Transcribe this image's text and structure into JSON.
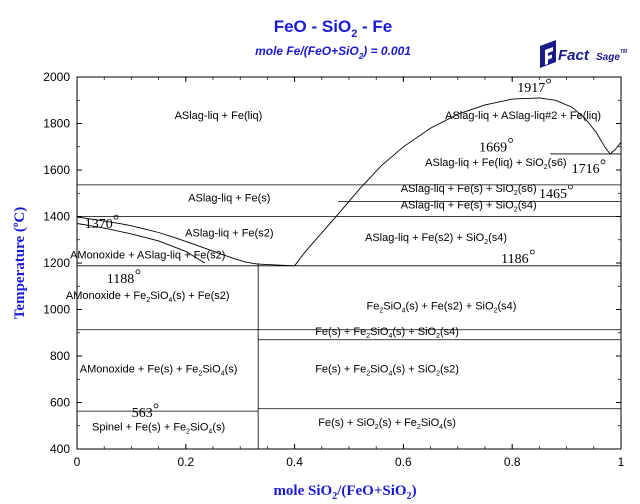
{
  "chart_data": {
    "type": "phase-diagram",
    "title": "FeO - SiO2 - Fe",
    "title_parts": [
      "FeO - SiO",
      "2",
      " - Fe"
    ],
    "subtitle_parts": [
      "mole Fe/(FeO+SiO",
      "2",
      ") = 0.001"
    ],
    "xlabel_parts": [
      "mole SiO",
      "2",
      "/(FeO+SiO",
      "2",
      ")"
    ],
    "ylabel": "Temperature (°C)",
    "ylabel_parts": [
      "Temperature (",
      "o",
      "C)"
    ],
    "xlim": [
      0,
      1
    ],
    "ylim": [
      400,
      2000
    ],
    "xticks": [
      0,
      0.2,
      0.4,
      0.6,
      0.8,
      1
    ],
    "xtick_labels": [
      "0",
      "0.2",
      "0.4",
      "0.6",
      "0.8",
      "1"
    ],
    "yticks": [
      400,
      600,
      800,
      1000,
      1200,
      1400,
      1600,
      1800,
      2000
    ],
    "ytick_labels": [
      "400",
      "600",
      "800",
      "1000",
      "1200",
      "1400",
      "1600",
      "1800",
      "2000"
    ],
    "horizontal_lines": [
      {
        "y": 1669,
        "x": [
          0.87,
          1.0
        ]
      },
      {
        "y": 1536,
        "x": [
          0,
          1.0
        ]
      },
      {
        "y": 1465,
        "x": [
          0.48,
          1.0
        ]
      },
      {
        "y": 1400,
        "x": [
          0,
          1.0
        ]
      },
      {
        "y": 1188,
        "x": [
          0,
          1.0
        ]
      },
      {
        "y": 913,
        "x": [
          0,
          1.0
        ]
      },
      {
        "y": 870,
        "x": [
          0.333,
          1.0
        ]
      },
      {
        "y": 573,
        "x": [
          0.333,
          1.0
        ]
      },
      {
        "y": 563,
        "x": [
          0,
          0.333
        ]
      }
    ],
    "vertical_lines": [
      {
        "x": 0.333,
        "y": [
          400,
          1200
        ]
      }
    ],
    "curves": [
      {
        "name": "liquidus-left",
        "x": [
          0,
          0.02,
          0.05,
          0.08,
          0.1,
          0.12,
          0.15,
          0.18,
          0.2,
          0.23,
          0.26,
          0.29,
          0.31,
          0.33,
          0.35,
          0.38,
          0.4
        ],
        "y": [
          1398,
          1391,
          1380,
          1369,
          1360,
          1349,
          1331,
          1309,
          1293,
          1268,
          1242,
          1218,
          1204,
          1196,
          1193,
          1190,
          1188
        ]
      },
      {
        "name": "wustite-liquidus",
        "x": [
          0,
          0.05,
          0.1,
          0.15,
          0.2,
          0.235
        ],
        "y": [
          1370,
          1350,
          1325,
          1295,
          1250,
          1200
        ]
      },
      {
        "name": "miscibility-gap",
        "x": [
          0.4,
          0.42,
          0.45,
          0.48,
          0.52,
          0.56,
          0.6,
          0.65,
          0.7,
          0.75,
          0.8,
          0.85,
          0.88,
          0.91,
          0.935,
          0.955,
          0.97,
          0.98
        ],
        "y": [
          1188,
          1250,
          1330,
          1410,
          1520,
          1620,
          1700,
          1780,
          1840,
          1880,
          1905,
          1910,
          1900,
          1870,
          1820,
          1760,
          1700,
          1669
        ]
      },
      {
        "name": "cristobalite-liquidus",
        "x": [
          0.98,
          0.99,
          1.0
        ],
        "y": [
          1669,
          1690,
          1720
        ]
      }
    ],
    "regions": [
      {
        "label_parts": [
          "ASlag-liq + Fe(liq)"
        ],
        "x": 0.26,
        "y": 1820
      },
      {
        "label_parts": [
          "ASlag-liq + ASlag-liq#2 + Fe(liq)"
        ],
        "x": 0.82,
        "y": 1820
      },
      {
        "label_parts": [
          "ASlag-liq + Fe(liq) + SiO",
          "2",
          "(s6)"
        ],
        "x": 0.77,
        "y": 1618
      },
      {
        "label_parts": [
          "ASlag-liq + Fe(s) + SiO",
          "2",
          "(s6)"
        ],
        "x": 0.72,
        "y": 1505
      },
      {
        "label_parts": [
          "ASlag-liq + Fe(s) + SiO",
          "2",
          "(s4)"
        ],
        "x": 0.72,
        "y": 1435
      },
      {
        "label_parts": [
          "ASlag-liq + Fe(s)"
        ],
        "x": 0.28,
        "y": 1465
      },
      {
        "label_parts": [
          "ASlag-liq + Fe(s2)"
        ],
        "x": 0.28,
        "y": 1315
      },
      {
        "label_parts": [
          "ASlag-liq + Fe(s2) + SiO",
          "2",
          "(s4)"
        ],
        "x": 0.66,
        "y": 1295
      },
      {
        "label_parts": [
          "AMonoxide + ASlag-liq + Fe(s2)"
        ],
        "x": 0.13,
        "y": 1220
      },
      {
        "label_parts": [
          "AMonoxide + Fe",
          "2",
          "SiO",
          "4",
          "(s) + Fe(s2)"
        ],
        "x": 0.13,
        "y": 1045
      },
      {
        "label_parts": [
          "Fe",
          "2",
          "SiO",
          "4",
          "(s) + Fe(s2) + SiO",
          "2",
          "(s4)"
        ],
        "x": 0.67,
        "y": 1000
      },
      {
        "label_parts": [
          "Fe(s) + Fe",
          "2",
          "SiO",
          "4",
          "(s) + SiO",
          "2",
          "(s4)"
        ],
        "x": 0.57,
        "y": 890
      },
      {
        "label_parts": [
          "AMonoxide + Fe(s) + Fe",
          "2",
          "SiO",
          "4",
          "(s)"
        ],
        "x": 0.15,
        "y": 730
      },
      {
        "label_parts": [
          "Fe(s) + Fe",
          "2",
          "SiO",
          "4",
          "(s) + SiO",
          "2",
          "(s2)"
        ],
        "x": 0.57,
        "y": 730
      },
      {
        "label_parts": [
          "Spinel + Fe(s) + Fe",
          "2",
          "SiO",
          "4",
          "(s)"
        ],
        "x": 0.15,
        "y": 480
      },
      {
        "label_parts": [
          "Fe(s) + SiO",
          "2",
          "(s) + Fe",
          "2",
          "SiO",
          "4",
          "(s)"
        ],
        "x": 0.57,
        "y": 500
      }
    ],
    "temperature_labels": [
      {
        "value": "1917",
        "x": 0.835,
        "y": 1935
      },
      {
        "value": "1669",
        "x": 0.765,
        "y": 1680
      },
      {
        "value": "1716",
        "x": 0.935,
        "y": 1588
      },
      {
        "value": "1465",
        "x": 0.875,
        "y": 1480
      },
      {
        "value": "1370",
        "x": 0.04,
        "y": 1350
      },
      {
        "value": "1188",
        "x": 0.08,
        "y": 1115
      },
      {
        "value": "1186",
        "x": 0.805,
        "y": 1200
      },
      {
        "value": "563",
        "x": 0.12,
        "y": 538
      }
    ]
  },
  "logo": {
    "text_bold": "Fact",
    "text_rest": "Sage",
    "tm": "TM"
  }
}
